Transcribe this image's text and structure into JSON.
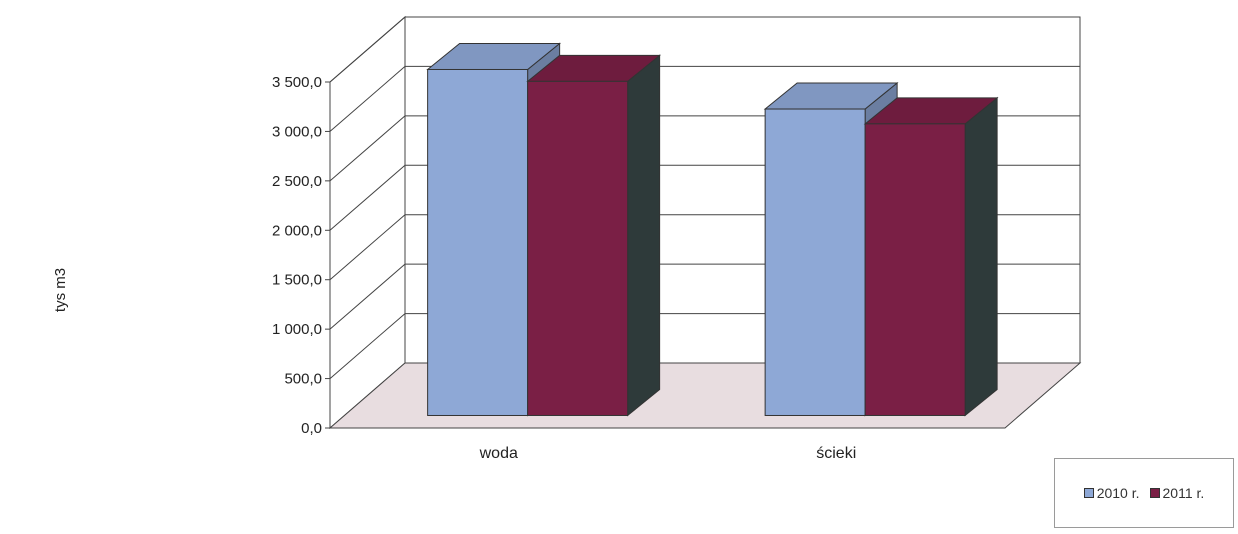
{
  "chart_data": {
    "type": "bar",
    "categories": [
      "woda",
      "ścieki"
    ],
    "series": [
      {
        "name": "2010 r.",
        "values": [
          3500,
          3100
        ],
        "color": "#8ea8d6"
      },
      {
        "name": "2011 r.",
        "values": [
          3380,
          2950
        ],
        "color": "#7a1f45"
      }
    ],
    "ylabel": "tys m3",
    "yticks": [
      "0,0",
      "500,0",
      "1 000,0",
      "1 500,0",
      "2 000,0",
      "2 500,0",
      "3 000,0",
      "3 500,0"
    ],
    "ylim": [
      0,
      3500
    ],
    "grid": true,
    "legend_position": "bottom-right",
    "floor_color": "#e8dde0"
  }
}
